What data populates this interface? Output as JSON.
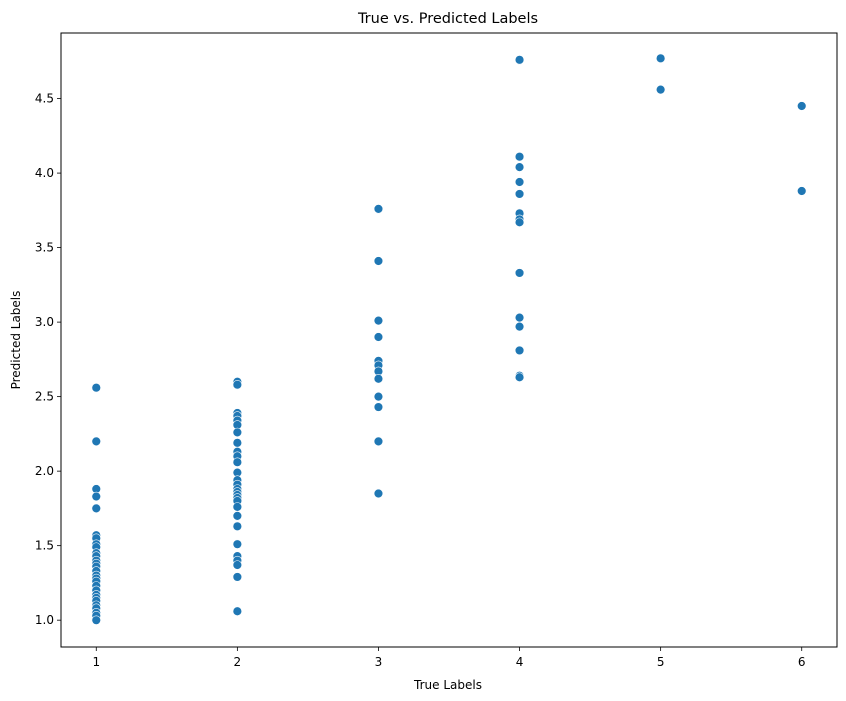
{
  "chart_data": {
    "type": "scatter",
    "title": "True vs. Predicted Labels",
    "xlabel": "True Labels",
    "ylabel": "Predicted Labels",
    "xlim": [
      0.75,
      6.25
    ],
    "ylim": [
      0.82,
      4.94
    ],
    "xticks": [
      1,
      2,
      3,
      4,
      5,
      6
    ],
    "yticks": [
      1.0,
      1.5,
      2.0,
      2.5,
      3.0,
      3.5,
      4.0,
      4.5
    ],
    "ytick_labels": [
      "1.0",
      "1.5",
      "2.0",
      "2.5",
      "3.0",
      "3.5",
      "4.0",
      "4.5"
    ],
    "grid": false,
    "marker_color": "#1f77b4",
    "points": [
      [
        1,
        2.56
      ],
      [
        1,
        2.2
      ],
      [
        1,
        1.88
      ],
      [
        1,
        1.83
      ],
      [
        1,
        1.75
      ],
      [
        1,
        1.57
      ],
      [
        1,
        1.55
      ],
      [
        1,
        1.51
      ],
      [
        1,
        1.49
      ],
      [
        1,
        1.45
      ],
      [
        1,
        1.43
      ],
      [
        1,
        1.4
      ],
      [
        1,
        1.38
      ],
      [
        1,
        1.36
      ],
      [
        1,
        1.33
      ],
      [
        1,
        1.3
      ],
      [
        1,
        1.28
      ],
      [
        1,
        1.26
      ],
      [
        1,
        1.23
      ],
      [
        1,
        1.2
      ],
      [
        1,
        1.17
      ],
      [
        1,
        1.15
      ],
      [
        1,
        1.13
      ],
      [
        1,
        1.1
      ],
      [
        1,
        1.08
      ],
      [
        1,
        1.05
      ],
      [
        1,
        1.03
      ],
      [
        1,
        1.0
      ],
      [
        2,
        2.6
      ],
      [
        2,
        2.58
      ],
      [
        2,
        2.39
      ],
      [
        2,
        2.37
      ],
      [
        2,
        2.34
      ],
      [
        2,
        2.31
      ],
      [
        2,
        2.26
      ],
      [
        2,
        2.19
      ],
      [
        2,
        2.13
      ],
      [
        2,
        2.1
      ],
      [
        2,
        2.06
      ],
      [
        2,
        1.99
      ],
      [
        2,
        1.94
      ],
      [
        2,
        1.91
      ],
      [
        2,
        1.88
      ],
      [
        2,
        1.86
      ],
      [
        2,
        1.84
      ],
      [
        2,
        1.82
      ],
      [
        2,
        1.8
      ],
      [
        2,
        1.76
      ],
      [
        2,
        1.7
      ],
      [
        2,
        1.63
      ],
      [
        2,
        1.51
      ],
      [
        2,
        1.43
      ],
      [
        2,
        1.4
      ],
      [
        2,
        1.37
      ],
      [
        2,
        1.29
      ],
      [
        2,
        1.06
      ],
      [
        3,
        3.76
      ],
      [
        3,
        3.41
      ],
      [
        3,
        3.01
      ],
      [
        3,
        2.9
      ],
      [
        3,
        2.74
      ],
      [
        3,
        2.71
      ],
      [
        3,
        2.67
      ],
      [
        3,
        2.62
      ],
      [
        3,
        2.5
      ],
      [
        3,
        2.43
      ],
      [
        3,
        2.2
      ],
      [
        3,
        1.85
      ],
      [
        4,
        4.76
      ],
      [
        4,
        4.11
      ],
      [
        4,
        4.04
      ],
      [
        4,
        3.94
      ],
      [
        4,
        3.86
      ],
      [
        4,
        3.73
      ],
      [
        4,
        3.69
      ],
      [
        4,
        3.67
      ],
      [
        4,
        3.33
      ],
      [
        4,
        3.03
      ],
      [
        4,
        2.97
      ],
      [
        4,
        2.81
      ],
      [
        4,
        2.64
      ],
      [
        4,
        2.63
      ],
      [
        5,
        4.77
      ],
      [
        5,
        4.56
      ],
      [
        6,
        4.45
      ],
      [
        6,
        3.88
      ]
    ]
  }
}
